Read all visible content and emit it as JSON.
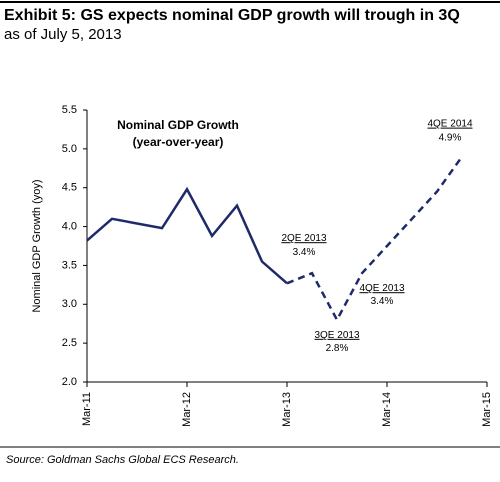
{
  "chart_data": {
    "type": "line",
    "title": "Exhibit 5: GS expects nominal GDP growth will trough in 3Q",
    "subtitle": "as of July 5, 2013",
    "y_label": "Nominal GDP Growth (yoy)",
    "annotation": [
      "Nominal GDP Growth",
      "(year-over-year)"
    ],
    "source": "Source: Goldman Sachs Global ECS Research.",
    "categories": [
      "Mar-11",
      null,
      null,
      null,
      "Mar-12",
      null,
      null,
      null,
      "Mar-13",
      null,
      null,
      null,
      "Mar-14",
      null,
      null,
      null,
      "Mar-15"
    ],
    "series": [
      {
        "color": "#1f2a6b",
        "style": "solid",
        "values": [
          3.82,
          4.1,
          4.04,
          3.98,
          4.48,
          3.88,
          4.27,
          3.55,
          3.27,
          null,
          null,
          null,
          null,
          null,
          null,
          null,
          null
        ]
      },
      {
        "color": "#1f2a6b",
        "style": "dashed",
        "values": [
          null,
          null,
          null,
          null,
          null,
          null,
          null,
          null,
          3.27,
          3.4,
          2.8,
          3.4,
          3.75,
          4.1,
          4.45,
          4.9,
          null
        ],
        "point_labels": [
          null,
          null,
          null,
          null,
          null,
          null,
          null,
          null,
          null,
          "2QE 2013",
          "3QE 2013",
          "4QE 2013",
          null,
          null,
          null,
          "4QE 2014",
          null
        ],
        "value_labels": [
          null,
          null,
          null,
          null,
          null,
          null,
          null,
          null,
          null,
          "3.4%",
          "2.8%",
          "3.4%",
          null,
          null,
          null,
          "4.9%",
          null
        ]
      }
    ],
    "ylim": [
      2.0,
      5.5
    ],
    "yticks": [
      {
        "value": 2,
        "label": "2.0"
      },
      2.5,
      {
        "value": 3,
        "label": "3.0"
      },
      3.5,
      {
        "value": 4,
        "label": "4.0"
      },
      4.5,
      {
        "value": 5,
        "label": "5.0"
      },
      5.5
    ],
    "grid": false
  }
}
